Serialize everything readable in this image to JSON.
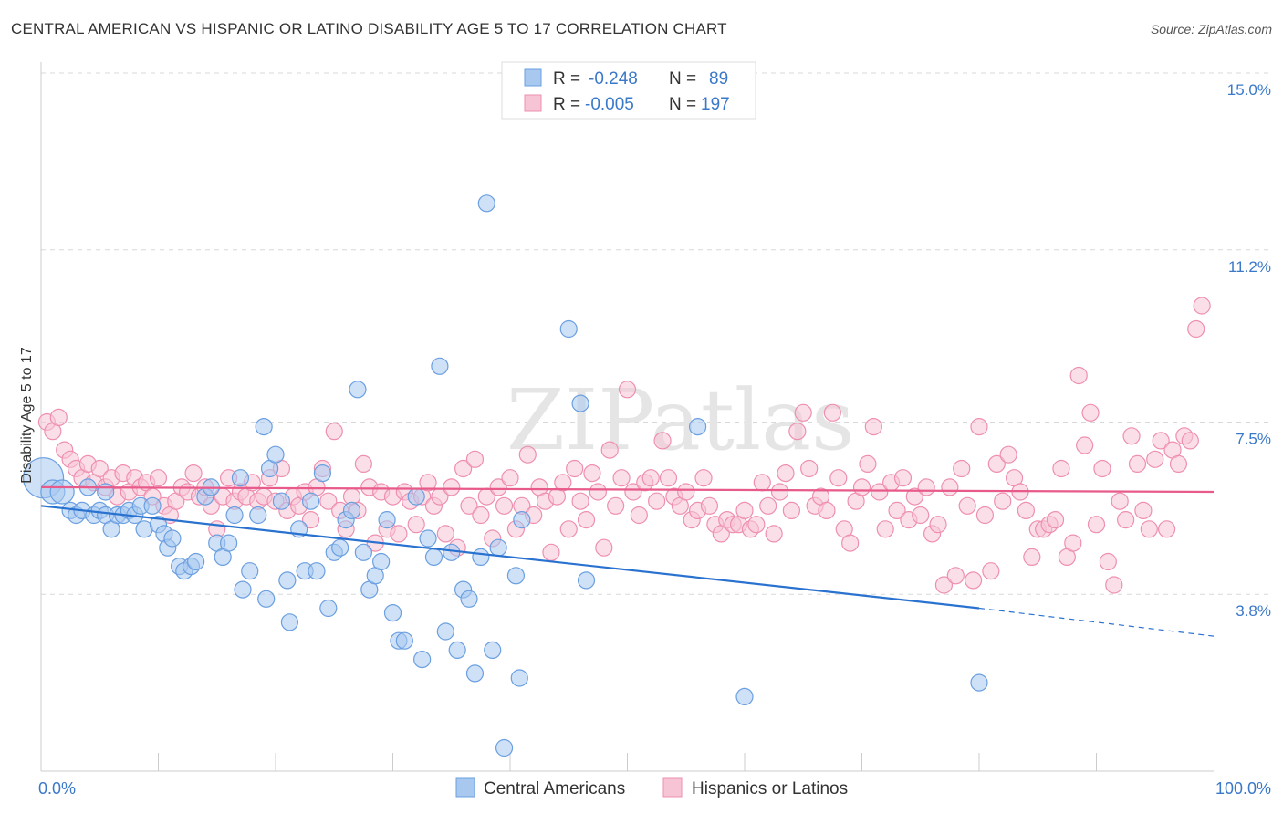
{
  "title": "CENTRAL AMERICAN VS HISPANIC OR LATINO DISABILITY AGE 5 TO 17 CORRELATION CHART",
  "source": "Source: ZipAtlas.com",
  "watermark": "ZIPatlas",
  "colors": {
    "blue": "#6a9fe0",
    "blue_fill": "#a8c8f0",
    "blue_line": "#2a72d0",
    "pink": "#ee8fb0",
    "pink_fill": "#f7c4d6",
    "pink_line": "#e75a8a",
    "axis_label": "#3a78c9",
    "grid": "#d8d8d8"
  },
  "legend": {
    "rows": [
      {
        "r_label": "R =",
        "r_value": "-0.248",
        "n_label": "N =",
        "n_value": "89",
        "series": "blue"
      },
      {
        "r_label": "R =",
        "r_value": "-0.005",
        "n_label": "N =",
        "n_value": "197",
        "series": "pink"
      }
    ]
  },
  "chart_data": {
    "type": "scatter",
    "title": "CENTRAL AMERICAN VS HISPANIC OR LATINO DISABILITY AGE 5 TO 17 CORRELATION CHART",
    "xlabel": "",
    "ylabel": "Disability Age 5 to 17",
    "xlim": [
      0,
      100
    ],
    "ylim": [
      0.0,
      15.0
    ],
    "x_tick_labels": [
      "0.0%",
      "100.0%"
    ],
    "y_ticks": [
      3.8,
      7.5,
      11.2,
      15.0
    ],
    "y_tick_labels": [
      "3.8%",
      "7.5%",
      "11.2%",
      "15.0%"
    ],
    "grid": "horizontal dashed",
    "legend_position": "top-center",
    "series": [
      {
        "name": "Central Americans",
        "color": "blue",
        "trend": {
          "x0": 0,
          "y0": 5.7,
          "x1": 80,
          "y1": 3.5,
          "dashed_to_x": 100,
          "dashed_to_y": 2.9
        },
        "points": [
          [
            0.2,
            6.3
          ],
          [
            1,
            6.0
          ],
          [
            1.8,
            6.0
          ],
          [
            2.5,
            5.6
          ],
          [
            3,
            5.5
          ],
          [
            3.5,
            5.6
          ],
          [
            4,
            6.1
          ],
          [
            4.5,
            5.5
          ],
          [
            5,
            5.6
          ],
          [
            5.5,
            5.5
          ],
          [
            5.5,
            6.0
          ],
          [
            6,
            5.2
          ],
          [
            6.5,
            5.5
          ],
          [
            7,
            5.5
          ],
          [
            7.5,
            5.6
          ],
          [
            8,
            5.5
          ],
          [
            8.5,
            5.7
          ],
          [
            8.8,
            5.2
          ],
          [
            9.5,
            5.7
          ],
          [
            10,
            5.3
          ],
          [
            10.5,
            5.1
          ],
          [
            10.8,
            4.8
          ],
          [
            11.2,
            5.0
          ],
          [
            11.8,
            4.4
          ],
          [
            12.2,
            4.3
          ],
          [
            12.8,
            4.4
          ],
          [
            13.2,
            4.5
          ],
          [
            14,
            5.9
          ],
          [
            14.5,
            6.1
          ],
          [
            15,
            4.9
          ],
          [
            15.5,
            4.6
          ],
          [
            16,
            4.9
          ],
          [
            16.5,
            5.5
          ],
          [
            17,
            6.3
          ],
          [
            17.2,
            3.9
          ],
          [
            17.8,
            4.3
          ],
          [
            18.5,
            5.5
          ],
          [
            19,
            7.4
          ],
          [
            19.2,
            3.7
          ],
          [
            19.5,
            6.5
          ],
          [
            20,
            6.8
          ],
          [
            20.5,
            5.8
          ],
          [
            21,
            4.1
          ],
          [
            21.2,
            3.2
          ],
          [
            22,
            5.2
          ],
          [
            22.5,
            4.3
          ],
          [
            23,
            5.8
          ],
          [
            23.5,
            4.3
          ],
          [
            24,
            6.4
          ],
          [
            24.5,
            3.5
          ],
          [
            25,
            4.7
          ],
          [
            25.5,
            4.8
          ],
          [
            26,
            5.4
          ],
          [
            26.5,
            5.6
          ],
          [
            27,
            8.2
          ],
          [
            27.5,
            4.7
          ],
          [
            28,
            3.9
          ],
          [
            28.5,
            4.2
          ],
          [
            29,
            4.5
          ],
          [
            29.5,
            5.4
          ],
          [
            30,
            3.4
          ],
          [
            30.5,
            2.8
          ],
          [
            31,
            2.8
          ],
          [
            32,
            5.9
          ],
          [
            32.5,
            2.4
          ],
          [
            33,
            5.0
          ],
          [
            33.5,
            4.6
          ],
          [
            34,
            8.7
          ],
          [
            34.5,
            3.0
          ],
          [
            35,
            4.7
          ],
          [
            35.5,
            2.6
          ],
          [
            36,
            3.9
          ],
          [
            36.5,
            3.7
          ],
          [
            37,
            2.1
          ],
          [
            37.5,
            4.6
          ],
          [
            38,
            12.2
          ],
          [
            38.5,
            2.6
          ],
          [
            39,
            4.8
          ],
          [
            39.5,
            0.5
          ],
          [
            40.5,
            4.2
          ],
          [
            40.8,
            2.0
          ],
          [
            41,
            5.4
          ],
          [
            45,
            9.5
          ],
          [
            46,
            7.9
          ],
          [
            46.5,
            4.1
          ],
          [
            56,
            7.4
          ],
          [
            60,
            1.6
          ],
          [
            80,
            1.9
          ]
        ]
      },
      {
        "name": "Hispanics or Latinos",
        "color": "pink",
        "trend": {
          "x0": 0,
          "y0": 6.1,
          "x1": 100,
          "y1": 6.0
        },
        "points": [
          [
            0.5,
            7.5
          ],
          [
            1,
            7.3
          ],
          [
            1.5,
            7.6
          ],
          [
            2,
            6.9
          ],
          [
            2.5,
            6.7
          ],
          [
            3,
            6.5
          ],
          [
            3.5,
            6.3
          ],
          [
            4,
            6.6
          ],
          [
            4.5,
            6.2
          ],
          [
            5,
            6.5
          ],
          [
            5.5,
            6.1
          ],
          [
            6,
            6.3
          ],
          [
            6.5,
            5.9
          ],
          [
            7,
            6.4
          ],
          [
            7.5,
            6.0
          ],
          [
            8,
            6.3
          ],
          [
            8.5,
            6.1
          ],
          [
            9,
            6.2
          ],
          [
            9.5,
            5.9
          ],
          [
            10,
            6.3
          ],
          [
            10.5,
            5.7
          ],
          [
            11,
            5.5
          ],
          [
            11.5,
            5.8
          ],
          [
            12,
            6.1
          ],
          [
            12.5,
            6.0
          ],
          [
            13,
            6.4
          ],
          [
            13.5,
            5.9
          ],
          [
            14,
            6.1
          ],
          [
            14.5,
            5.7
          ],
          [
            15,
            5.2
          ],
          [
            15.5,
            5.9
          ],
          [
            16,
            6.3
          ],
          [
            16.5,
            5.8
          ],
          [
            17,
            6.0
          ],
          [
            17.5,
            5.9
          ],
          [
            18,
            6.2
          ],
          [
            18.5,
            5.8
          ],
          [
            19,
            5.9
          ],
          [
            19.5,
            6.3
          ],
          [
            20,
            5.8
          ],
          [
            20.5,
            6.5
          ],
          [
            21,
            5.6
          ],
          [
            21.5,
            5.9
          ],
          [
            22,
            5.7
          ],
          [
            22.5,
            6.0
          ],
          [
            23,
            5.4
          ],
          [
            23.5,
            6.1
          ],
          [
            24,
            6.5
          ],
          [
            24.5,
            5.8
          ],
          [
            25,
            7.3
          ],
          [
            25.5,
            5.6
          ],
          [
            26,
            5.2
          ],
          [
            26.5,
            5.9
          ],
          [
            27,
            5.6
          ],
          [
            27.5,
            6.6
          ],
          [
            28,
            6.1
          ],
          [
            28.5,
            4.9
          ],
          [
            29,
            6.0
          ],
          [
            29.5,
            5.2
          ],
          [
            30,
            5.9
          ],
          [
            30.5,
            5.1
          ],
          [
            31,
            6.0
          ],
          [
            31.5,
            5.8
          ],
          [
            32,
            5.3
          ],
          [
            32.5,
            5.9
          ],
          [
            33,
            6.2
          ],
          [
            33.5,
            5.7
          ],
          [
            34,
            5.9
          ],
          [
            34.5,
            5.1
          ],
          [
            35,
            6.1
          ],
          [
            35.5,
            4.8
          ],
          [
            36,
            6.5
          ],
          [
            36.5,
            5.7
          ],
          [
            37,
            6.7
          ],
          [
            37.5,
            5.5
          ],
          [
            38,
            5.9
          ],
          [
            38.5,
            5.0
          ],
          [
            39,
            6.1
          ],
          [
            39.5,
            5.7
          ],
          [
            40,
            6.3
          ],
          [
            40.5,
            5.2
          ],
          [
            41,
            5.7
          ],
          [
            41.5,
            6.8
          ],
          [
            42,
            5.5
          ],
          [
            42.5,
            6.1
          ],
          [
            43,
            5.8
          ],
          [
            43.5,
            4.7
          ],
          [
            44,
            5.9
          ],
          [
            44.5,
            6.2
          ],
          [
            45,
            5.2
          ],
          [
            45.5,
            6.5
          ],
          [
            46,
            5.8
          ],
          [
            46.5,
            5.4
          ],
          [
            47,
            6.4
          ],
          [
            47.5,
            6.0
          ],
          [
            48,
            4.8
          ],
          [
            48.5,
            6.9
          ],
          [
            49,
            5.7
          ],
          [
            49.5,
            6.3
          ],
          [
            50,
            8.2
          ],
          [
            50.5,
            6.0
          ],
          [
            51,
            5.5
          ],
          [
            51.5,
            6.2
          ],
          [
            52,
            6.3
          ],
          [
            52.5,
            5.8
          ],
          [
            53,
            7.1
          ],
          [
            53.5,
            6.3
          ],
          [
            54,
            5.9
          ],
          [
            54.5,
            5.7
          ],
          [
            55,
            6.0
          ],
          [
            55.5,
            5.4
          ],
          [
            56,
            5.6
          ],
          [
            56.5,
            6.3
          ],
          [
            57,
            5.7
          ],
          [
            57.5,
            5.3
          ],
          [
            58,
            5.1
          ],
          [
            58.5,
            5.4
          ],
          [
            59,
            5.3
          ],
          [
            59.5,
            5.3
          ],
          [
            60,
            5.6
          ],
          [
            60.5,
            5.2
          ],
          [
            61,
            5.3
          ],
          [
            61.5,
            6.2
          ],
          [
            62,
            5.7
          ],
          [
            62.5,
            5.1
          ],
          [
            63,
            6.0
          ],
          [
            63.5,
            6.4
          ],
          [
            64,
            5.6
          ],
          [
            64.5,
            7.3
          ],
          [
            65,
            7.7
          ],
          [
            65.5,
            6.5
          ],
          [
            66,
            5.7
          ],
          [
            66.5,
            5.9
          ],
          [
            67,
            5.6
          ],
          [
            67.5,
            7.7
          ],
          [
            68,
            6.3
          ],
          [
            68.5,
            5.2
          ],
          [
            69,
            4.9
          ],
          [
            69.5,
            5.8
          ],
          [
            70,
            6.1
          ],
          [
            70.5,
            6.6
          ],
          [
            71,
            7.4
          ],
          [
            71.5,
            6.0
          ],
          [
            72,
            5.2
          ],
          [
            72.5,
            6.2
          ],
          [
            73,
            5.6
          ],
          [
            73.5,
            6.3
          ],
          [
            74,
            5.4
          ],
          [
            74.5,
            5.9
          ],
          [
            75,
            5.5
          ],
          [
            75.5,
            6.1
          ],
          [
            76,
            5.1
          ],
          [
            76.5,
            5.3
          ],
          [
            77,
            4.0
          ],
          [
            77.5,
            6.1
          ],
          [
            78,
            4.2
          ],
          [
            78.5,
            6.5
          ],
          [
            79,
            5.7
          ],
          [
            79.5,
            4.1
          ],
          [
            80,
            7.4
          ],
          [
            80.5,
            5.5
          ],
          [
            81,
            4.3
          ],
          [
            81.5,
            6.6
          ],
          [
            82,
            5.8
          ],
          [
            82.5,
            6.8
          ],
          [
            83,
            6.3
          ],
          [
            83.5,
            6.0
          ],
          [
            84,
            5.6
          ],
          [
            84.5,
            4.6
          ],
          [
            85,
            5.2
          ],
          [
            85.5,
            5.2
          ],
          [
            86,
            5.3
          ],
          [
            86.5,
            5.4
          ],
          [
            87,
            6.5
          ],
          [
            87.5,
            4.6
          ],
          [
            88,
            4.9
          ],
          [
            88.5,
            8.5
          ],
          [
            89,
            7.0
          ],
          [
            89.5,
            7.7
          ],
          [
            90,
            5.3
          ],
          [
            90.5,
            6.5
          ],
          [
            91,
            4.5
          ],
          [
            91.5,
            4.0
          ],
          [
            92,
            5.8
          ],
          [
            92.5,
            5.4
          ],
          [
            93,
            7.2
          ],
          [
            93.5,
            6.6
          ],
          [
            94,
            5.6
          ],
          [
            94.5,
            5.2
          ],
          [
            95,
            6.7
          ],
          [
            95.5,
            7.1
          ],
          [
            96,
            5.2
          ],
          [
            96.5,
            6.9
          ],
          [
            97,
            6.6
          ],
          [
            97.5,
            7.2
          ],
          [
            98,
            7.1
          ],
          [
            98.5,
            9.5
          ],
          [
            99,
            10.0
          ]
        ]
      }
    ]
  },
  "bottom_legend": {
    "series_1": "Central Americans",
    "series_2": "Hispanics or Latinos"
  }
}
